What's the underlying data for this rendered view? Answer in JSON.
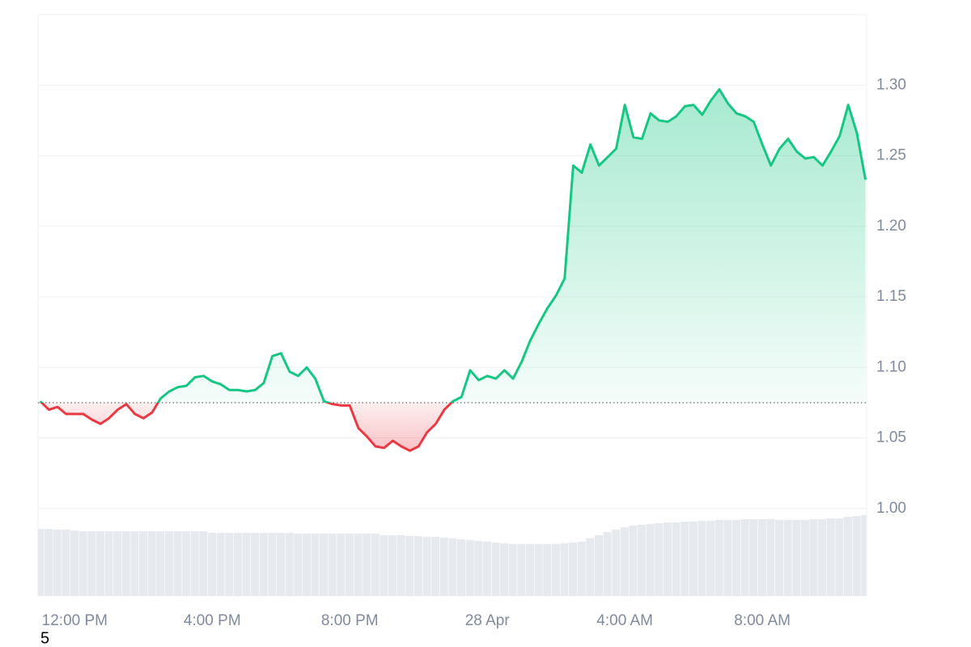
{
  "chart_data": {
    "type": "baseline_line",
    "x": [
      "27 Apr 11:00",
      "27 Apr 11:15",
      "27 Apr 11:30",
      "27 Apr 11:45",
      "27 Apr 12:00",
      "27 Apr 12:15",
      "27 Apr 12:30",
      "27 Apr 12:45",
      "27 Apr 13:00",
      "27 Apr 13:15",
      "27 Apr 13:30",
      "27 Apr 13:45",
      "27 Apr 14:00",
      "27 Apr 14:15",
      "27 Apr 14:30",
      "27 Apr 14:45",
      "27 Apr 15:00",
      "27 Apr 15:15",
      "27 Apr 15:30",
      "27 Apr 15:45",
      "27 Apr 16:00",
      "27 Apr 16:15",
      "27 Apr 16:30",
      "27 Apr 16:45",
      "27 Apr 17:00",
      "27 Apr 17:15",
      "27 Apr 17:30",
      "27 Apr 17:45",
      "27 Apr 18:00",
      "27 Apr 18:15",
      "27 Apr 18:30",
      "27 Apr 18:45",
      "27 Apr 19:00",
      "27 Apr 19:15",
      "27 Apr 19:30",
      "27 Apr 19:45",
      "27 Apr 20:00",
      "27 Apr 20:15",
      "27 Apr 20:30",
      "27 Apr 20:45",
      "27 Apr 21:00",
      "27 Apr 21:15",
      "27 Apr 21:30",
      "27 Apr 21:45",
      "27 Apr 22:00",
      "27 Apr 22:15",
      "27 Apr 22:30",
      "27 Apr 22:45",
      "27 Apr 23:00",
      "27 Apr 23:15",
      "27 Apr 23:30",
      "27 Apr 23:45",
      "28 Apr 00:00",
      "28 Apr 00:15",
      "28 Apr 00:30",
      "28 Apr 00:45",
      "28 Apr 01:00",
      "28 Apr 01:15",
      "28 Apr 01:30",
      "28 Apr 01:45",
      "28 Apr 02:00",
      "28 Apr 02:15",
      "28 Apr 02:30",
      "28 Apr 02:45",
      "28 Apr 03:00",
      "28 Apr 03:15",
      "28 Apr 03:30",
      "28 Apr 03:45",
      "28 Apr 04:00",
      "28 Apr 04:15",
      "28 Apr 04:30",
      "28 Apr 04:45",
      "28 Apr 05:00",
      "28 Apr 05:15",
      "28 Apr 05:30",
      "28 Apr 05:45",
      "28 Apr 06:00",
      "28 Apr 06:15",
      "28 Apr 06:30",
      "28 Apr 06:45",
      "28 Apr 07:00",
      "28 Apr 07:15",
      "28 Apr 07:30",
      "28 Apr 07:45",
      "28 Apr 08:00",
      "28 Apr 08:15",
      "28 Apr 08:30",
      "28 Apr 08:45",
      "28 Apr 09:00",
      "28 Apr 09:15",
      "28 Apr 09:30",
      "28 Apr 09:45",
      "28 Apr 10:00",
      "28 Apr 10:15",
      "28 Apr 10:30",
      "28 Apr 10:45",
      "28 Apr 11:00"
    ],
    "values": [
      1.076,
      1.07,
      1.072,
      1.067,
      1.067,
      1.067,
      1.063,
      1.06,
      1.064,
      1.07,
      1.074,
      1.067,
      1.064,
      1.068,
      1.078,
      1.083,
      1.086,
      1.087,
      1.093,
      1.094,
      1.09,
      1.088,
      1.084,
      1.084,
      1.083,
      1.084,
      1.089,
      1.108,
      1.11,
      1.097,
      1.094,
      1.1,
      1.092,
      1.076,
      1.074,
      1.073,
      1.073,
      1.057,
      1.051,
      1.044,
      1.043,
      1.048,
      1.044,
      1.041,
      1.044,
      1.054,
      1.06,
      1.07,
      1.076,
      1.079,
      1.098,
      1.091,
      1.094,
      1.092,
      1.098,
      1.092,
      1.104,
      1.119,
      1.131,
      1.142,
      1.151,
      1.163,
      1.243,
      1.238,
      1.258,
      1.243,
      1.249,
      1.255,
      1.286,
      1.263,
      1.262,
      1.28,
      1.275,
      1.274,
      1.278,
      1.285,
      1.286,
      1.279,
      1.289,
      1.297,
      1.287,
      1.28,
      1.278,
      1.274,
      1.258,
      1.243,
      1.255,
      1.262,
      1.253,
      1.248,
      1.249,
      1.243,
      1.253,
      1.264,
      1.286,
      1.266,
      1.233
    ],
    "volume": [
      84,
      84,
      83,
      83,
      82,
      81,
      81,
      81,
      81,
      81,
      81,
      81,
      81,
      81,
      81,
      81,
      81,
      81,
      81,
      81,
      79,
      79,
      79,
      79,
      79,
      79,
      79,
      79,
      79,
      79,
      78,
      78,
      78,
      78,
      78,
      78,
      78,
      78,
      78,
      78,
      76,
      76,
      76,
      75,
      75,
      74,
      74,
      73,
      72,
      71,
      70,
      69,
      68,
      67,
      66,
      65,
      65,
      65,
      65,
      65,
      65,
      66,
      67,
      68,
      72,
      76,
      80,
      83,
      86,
      88,
      89,
      90,
      91,
      92,
      92,
      93,
      93,
      94,
      94,
      95,
      95,
      95,
      96,
      96,
      96,
      96,
      95,
      95,
      95,
      95,
      96,
      96,
      97,
      97,
      99,
      100,
      101
    ],
    "baseline": 1.075,
    "up_color": "#16c784",
    "down_color": "#ea3943",
    "volume_color": "#e6e9ee",
    "xlim": [
      "27 Apr 10:56",
      "28 Apr 11:02"
    ],
    "xticks": [
      {
        "value": "27 Apr 12:00",
        "label": "12:00 PM"
      },
      {
        "value": "27 Apr 16:00",
        "label": "4:00 PM"
      },
      {
        "value": "27 Apr 20:00",
        "label": "8:00 PM"
      },
      {
        "value": "28 Apr 00:00",
        "label": "28 Apr"
      },
      {
        "value": "28 Apr 04:00",
        "label": "4:00 AM"
      },
      {
        "value": "28 Apr 08:00",
        "label": "8:00 AM"
      }
    ],
    "ylim": [
      0.938,
      1.35
    ],
    "yticks": [
      {
        "value": 1.0,
        "label": "1.00"
      },
      {
        "value": 1.05,
        "label": "1.05"
      },
      {
        "value": 1.1,
        "label": "1.10"
      },
      {
        "value": 1.15,
        "label": "1.15"
      },
      {
        "value": 1.2,
        "label": "1.20"
      },
      {
        "value": 1.25,
        "label": "1.25"
      },
      {
        "value": 1.3,
        "label": "1.30"
      }
    ],
    "grid": true,
    "annotation": "5"
  }
}
